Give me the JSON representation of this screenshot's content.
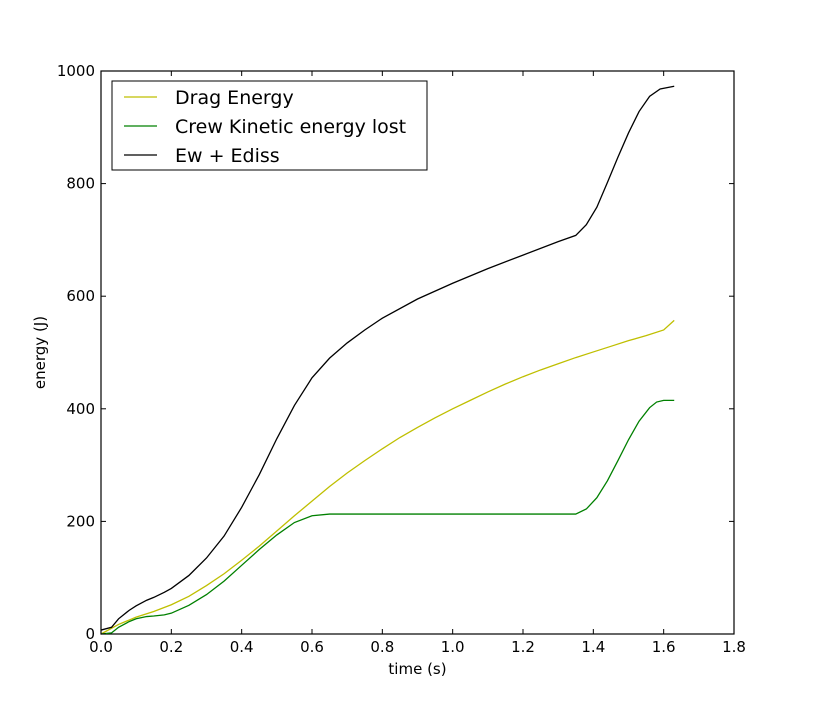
{
  "chart_data": {
    "type": "line",
    "xlabel": "time (s)",
    "ylabel": "energy (J)",
    "xlim": [
      0.0,
      1.8
    ],
    "ylim": [
      0,
      1000
    ],
    "xticks": [
      0.0,
      0.2,
      0.4,
      0.6,
      0.8,
      1.0,
      1.2,
      1.4,
      1.6,
      1.8
    ],
    "xtick_labels": [
      "0.0",
      "0.2",
      "0.4",
      "0.6",
      "0.8",
      "1.0",
      "1.2",
      "1.4",
      "1.6",
      "1.8"
    ],
    "yticks": [
      0,
      200,
      400,
      600,
      800,
      1000
    ],
    "ytick_labels": [
      "0",
      "200",
      "400",
      "600",
      "800",
      "1000"
    ],
    "grid": false,
    "legend_position": "top-left",
    "series": [
      {
        "name": "Drag Energy",
        "color": "#bfbf00",
        "x": [
          0.0,
          0.05,
          0.1,
          0.15,
          0.2,
          0.25,
          0.3,
          0.35,
          0.4,
          0.45,
          0.5,
          0.55,
          0.6,
          0.65,
          0.7,
          0.75,
          0.8,
          0.85,
          0.9,
          0.95,
          1.0,
          1.05,
          1.1,
          1.15,
          1.2,
          1.25,
          1.3,
          1.35,
          1.4,
          1.45,
          1.5,
          1.55,
          1.6,
          1.63
        ],
        "y": [
          0,
          17,
          30,
          40,
          52,
          67,
          86,
          107,
          131,
          156,
          183,
          210,
          236,
          262,
          286,
          308,
          329,
          349,
          367,
          384,
          400,
          415,
          430,
          444,
          457,
          469,
          480,
          491,
          501,
          511,
          521,
          530,
          540,
          557
        ]
      },
      {
        "name": "Crew Kinetic energy lost",
        "color": "#008000",
        "x": [
          0.0,
          0.03,
          0.05,
          0.08,
          0.1,
          0.13,
          0.15,
          0.18,
          0.2,
          0.25,
          0.3,
          0.35,
          0.4,
          0.45,
          0.5,
          0.55,
          0.6,
          0.65,
          0.7,
          0.73,
          0.8,
          0.9,
          1.0,
          1.1,
          1.2,
          1.3,
          1.35,
          1.38,
          1.41,
          1.44,
          1.47,
          1.5,
          1.53,
          1.56,
          1.58,
          1.6,
          1.63
        ],
        "y": [
          0,
          2,
          12,
          22,
          27,
          31,
          32,
          34,
          37,
          51,
          70,
          94,
          122,
          150,
          176,
          198,
          210,
          213,
          213,
          213,
          213,
          213,
          213,
          213,
          213,
          213,
          213,
          222,
          242,
          272,
          308,
          345,
          378,
          402,
          412,
          415,
          415
        ]
      },
      {
        "name": "Ew + Ediss",
        "color": "#000000",
        "x": [
          0.0,
          0.03,
          0.05,
          0.08,
          0.1,
          0.13,
          0.15,
          0.18,
          0.2,
          0.25,
          0.3,
          0.35,
          0.4,
          0.45,
          0.5,
          0.55,
          0.6,
          0.65,
          0.7,
          0.75,
          0.8,
          0.9,
          1.0,
          1.1,
          1.2,
          1.3,
          1.35,
          1.38,
          1.41,
          1.44,
          1.47,
          1.5,
          1.53,
          1.56,
          1.59,
          1.63
        ],
        "y": [
          7,
          12,
          27,
          42,
          50,
          60,
          65,
          74,
          81,
          104,
          135,
          174,
          225,
          283,
          347,
          406,
          455,
          490,
          517,
          540,
          561,
          595,
          623,
          649,
          673,
          697,
          708,
          727,
          758,
          802,
          847,
          890,
          928,
          955,
          968,
          973
        ]
      }
    ]
  }
}
